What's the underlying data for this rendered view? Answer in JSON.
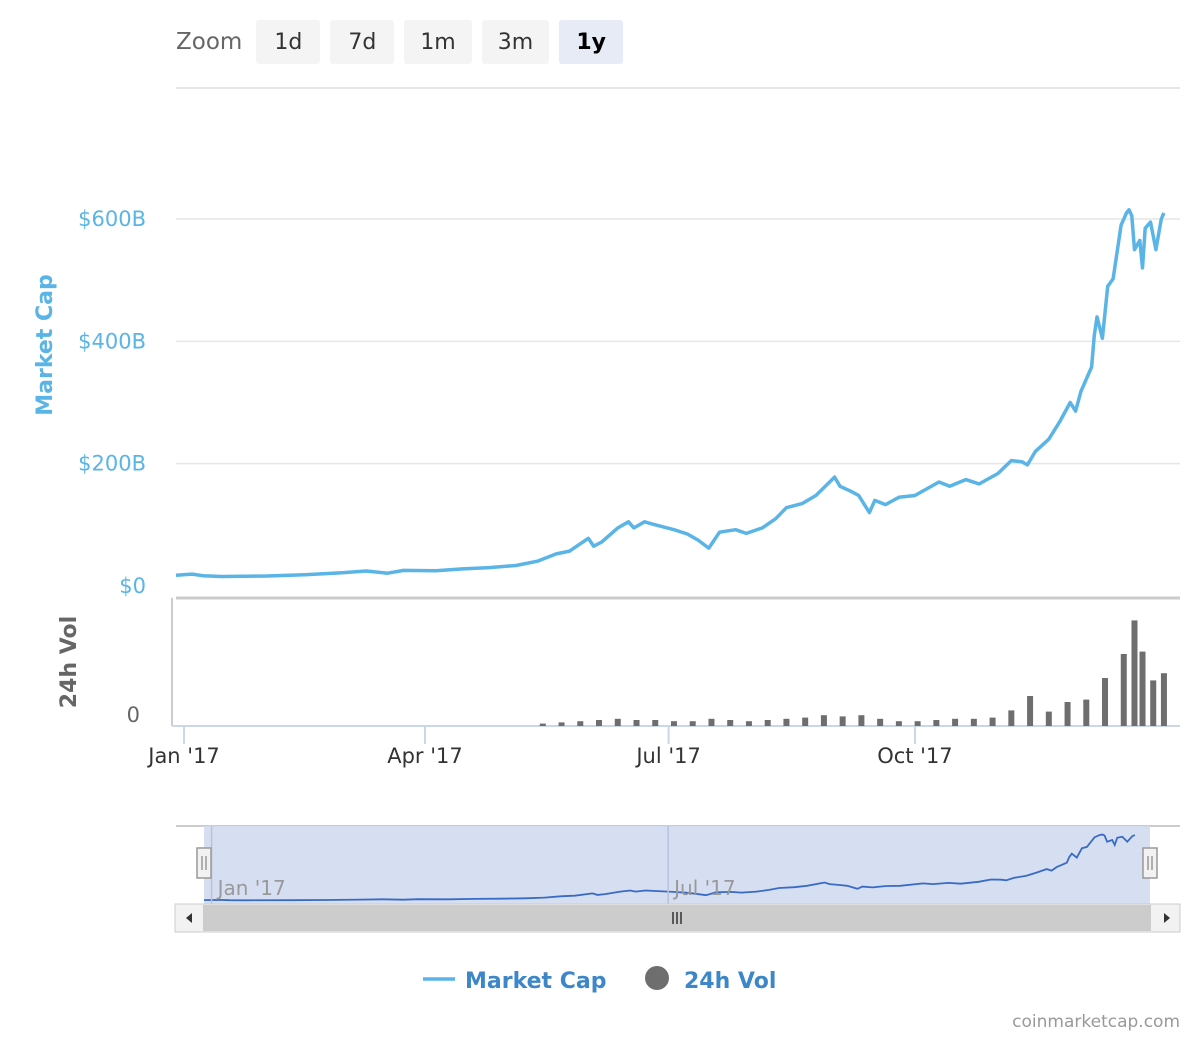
{
  "zoom": {
    "label": "Zoom",
    "buttons": [
      "1d",
      "7d",
      "1m",
      "3m",
      "1y"
    ],
    "active": "1y"
  },
  "credit": "coinmarketcap.com",
  "colors": {
    "market_cap": "#5ab4e5",
    "volume": "#6e6e6e",
    "navigator_line": "#3a6bc4",
    "navigator_mask": "#d2dbef",
    "grid": "#e6e6e6",
    "ylabel": "#5ab4e5",
    "vol_label": "#666666"
  },
  "chart_data": {
    "type": "line",
    "xlabel": "",
    "x_ticks": [
      "Jan '17",
      "Apr '17",
      "Jul '17",
      "Oct '17"
    ],
    "x_tick_dates": [
      "2017-01-01",
      "2017-04-01",
      "2017-07-01",
      "2017-10-01"
    ],
    "x_range": [
      "2016-12-29",
      "2018-01-08"
    ],
    "main": {
      "ylabel": "Market Cap",
      "y_ticks": [
        "$0",
        "$200B",
        "$400B",
        "$600B"
      ],
      "y_tick_values": [
        0,
        200,
        400,
        600
      ],
      "ylim": [
        0,
        800
      ],
      "grid": true,
      "series": [
        {
          "name": "Market Cap",
          "unit": "billion USD",
          "points": [
            [
              "2016-12-29",
              17.5
            ],
            [
              "2017-01-04",
              19.5
            ],
            [
              "2017-01-08",
              16.8
            ],
            [
              "2017-01-15",
              15.5
            ],
            [
              "2017-02-01",
              16.3
            ],
            [
              "2017-02-15",
              18.5
            ],
            [
              "2017-03-01",
              21.5
            ],
            [
              "2017-03-10",
              24.5
            ],
            [
              "2017-03-18",
              21
            ],
            [
              "2017-03-24",
              25.5
            ],
            [
              "2017-04-05",
              25
            ],
            [
              "2017-04-15",
              28
            ],
            [
              "2017-04-25",
              30
            ],
            [
              "2017-05-05",
              33.5
            ],
            [
              "2017-05-13",
              40.5
            ],
            [
              "2017-05-20",
              52.5
            ],
            [
              "2017-05-25",
              57
            ],
            [
              "2017-06-01",
              78
            ],
            [
              "2017-06-03",
              65
            ],
            [
              "2017-06-06",
              72
            ],
            [
              "2017-06-12",
              95
            ],
            [
              "2017-06-16",
              105
            ],
            [
              "2017-06-18",
              95
            ],
            [
              "2017-06-22",
              105
            ],
            [
              "2017-06-26",
              100
            ],
            [
              "2017-07-03",
              92
            ],
            [
              "2017-07-08",
              85
            ],
            [
              "2017-07-12",
              75
            ],
            [
              "2017-07-16",
              62
            ],
            [
              "2017-07-20",
              88
            ],
            [
              "2017-07-26",
              92
            ],
            [
              "2017-07-30",
              86
            ],
            [
              "2017-08-05",
              95
            ],
            [
              "2017-08-10",
              110
            ],
            [
              "2017-08-14",
              128
            ],
            [
              "2017-08-20",
              135
            ],
            [
              "2017-08-25",
              148
            ],
            [
              "2017-09-01",
              178
            ],
            [
              "2017-09-03",
              163
            ],
            [
              "2017-09-07",
              155
            ],
            [
              "2017-09-10",
              148
            ],
            [
              "2017-09-14",
              120
            ],
            [
              "2017-09-16",
              140
            ],
            [
              "2017-09-20",
              133
            ],
            [
              "2017-09-25",
              145
            ],
            [
              "2017-10-01",
              148
            ],
            [
              "2017-10-10",
              170
            ],
            [
              "2017-10-14",
              163
            ],
            [
              "2017-10-20",
              174
            ],
            [
              "2017-10-25",
              167
            ],
            [
              "2017-11-01",
              184
            ],
            [
              "2017-11-06",
              205
            ],
            [
              "2017-11-10",
              203
            ],
            [
              "2017-11-12",
              198
            ],
            [
              "2017-11-15",
              220
            ],
            [
              "2017-11-20",
              240
            ],
            [
              "2017-11-24",
              268
            ],
            [
              "2017-11-28",
              300
            ],
            [
              "2017-11-30",
              286
            ],
            [
              "2017-12-02",
              318
            ],
            [
              "2017-12-06",
              358
            ],
            [
              "2017-12-07",
              410
            ],
            [
              "2017-12-08",
              440
            ],
            [
              "2017-12-10",
              405
            ],
            [
              "2017-12-12",
              490
            ],
            [
              "2017-12-14",
              502
            ],
            [
              "2017-12-17",
              590
            ],
            [
              "2017-12-19",
              610
            ],
            [
              "2017-12-20",
              615
            ],
            [
              "2017-12-21",
              605
            ],
            [
              "2017-12-22",
              550
            ],
            [
              "2017-12-24",
              565
            ],
            [
              "2017-12-25",
              520
            ],
            [
              "2017-12-26",
              585
            ],
            [
              "2017-12-28",
              595
            ],
            [
              "2017-12-30",
              550
            ],
            [
              "2018-01-01",
              600
            ],
            [
              "2018-01-02",
              610
            ]
          ]
        }
      ]
    },
    "volume": {
      "ylabel": "24h Vol",
      "y_ticks": [
        "0"
      ],
      "series": [
        {
          "name": "24h Vol",
          "unit": "relative",
          "points": [
            [
              "2017-05-15",
              2
            ],
            [
              "2017-05-22",
              3
            ],
            [
              "2017-05-29",
              4
            ],
            [
              "2017-06-05",
              5
            ],
            [
              "2017-06-12",
              6
            ],
            [
              "2017-06-19",
              5
            ],
            [
              "2017-06-26",
              5
            ],
            [
              "2017-07-03",
              4
            ],
            [
              "2017-07-10",
              4
            ],
            [
              "2017-07-17",
              6
            ],
            [
              "2017-07-24",
              5
            ],
            [
              "2017-07-31",
              4
            ],
            [
              "2017-08-07",
              5
            ],
            [
              "2017-08-14",
              6
            ],
            [
              "2017-08-21",
              7
            ],
            [
              "2017-08-28",
              9
            ],
            [
              "2017-09-04",
              8
            ],
            [
              "2017-09-11",
              9
            ],
            [
              "2017-09-18",
              6
            ],
            [
              "2017-09-25",
              4
            ],
            [
              "2017-10-02",
              4
            ],
            [
              "2017-10-09",
              5
            ],
            [
              "2017-10-16",
              6
            ],
            [
              "2017-10-23",
              6
            ],
            [
              "2017-10-30",
              7
            ],
            [
              "2017-11-06",
              13
            ],
            [
              "2017-11-13",
              25
            ],
            [
              "2017-11-20",
              12
            ],
            [
              "2017-11-27",
              20
            ],
            [
              "2017-12-04",
              22
            ],
            [
              "2017-12-11",
              40
            ],
            [
              "2017-12-18",
              60
            ],
            [
              "2017-12-22",
              88
            ],
            [
              "2017-12-25",
              62
            ],
            [
              "2017-12-29",
              38
            ],
            [
              "2018-01-02",
              44
            ]
          ]
        }
      ]
    },
    "navigator": {
      "x_ticks": [
        "Jan '17",
        "Jul '17"
      ],
      "x_tick_dates": [
        "2017-01-01",
        "2017-07-01"
      ],
      "selected_range": [
        "2016-12-29",
        "2018-01-08"
      ]
    },
    "legend": {
      "placement": "bottom-center",
      "items": [
        {
          "label": "Market Cap",
          "symbol": "line"
        },
        {
          "label": "24h Vol",
          "symbol": "circle"
        }
      ]
    }
  }
}
